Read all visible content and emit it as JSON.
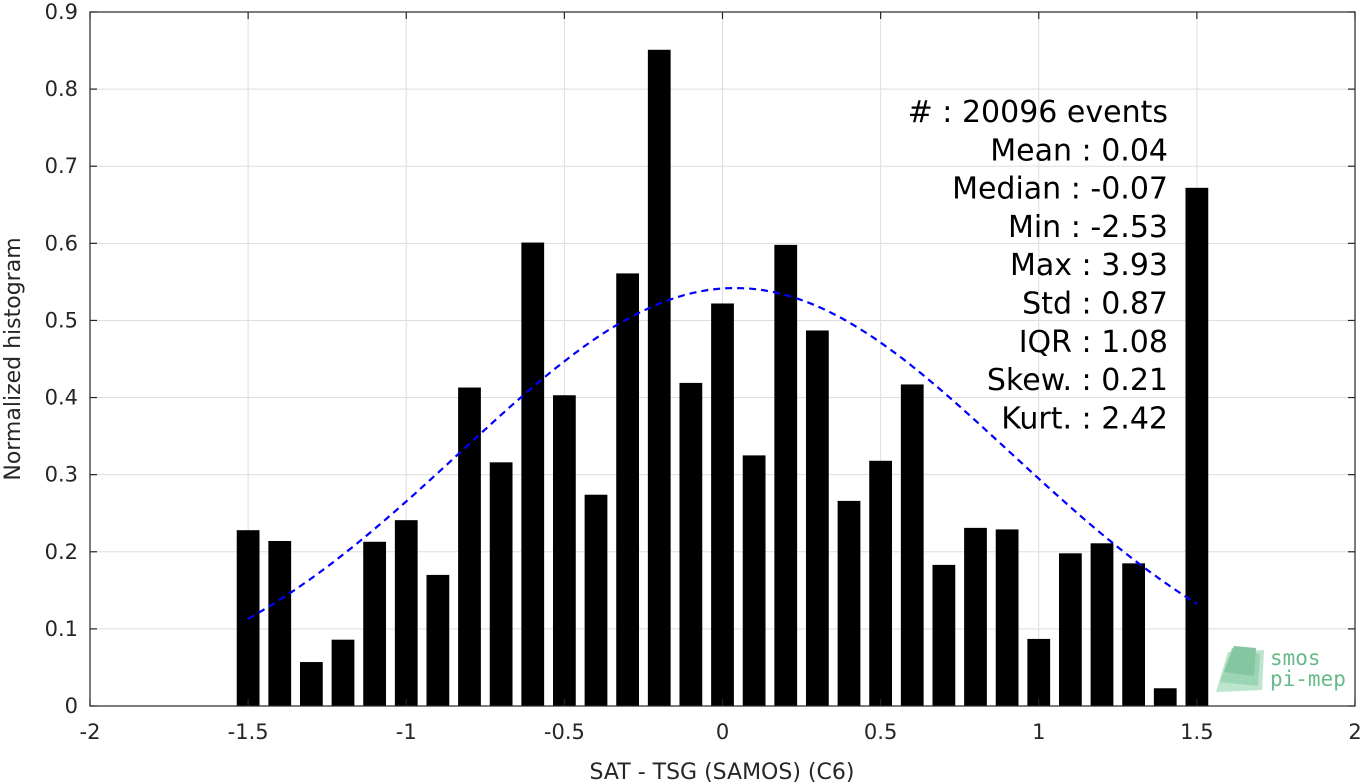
{
  "chart_data": {
    "type": "bar",
    "xlabel": "SAT - TSG (SAMOS) (C6)",
    "ylabel": "Normalized histogram",
    "xlim": [
      -2,
      2
    ],
    "ylim": [
      0,
      0.9
    ],
    "xticks": [
      -2,
      -1.5,
      -1,
      -0.5,
      0,
      0.5,
      1,
      1.5,
      2
    ],
    "xtick_labels": [
      "-2",
      "-1.5",
      "-1",
      "-0.5",
      "0",
      "0.5",
      "1",
      "1.5",
      "2"
    ],
    "yticks": [
      0,
      0.1,
      0.2,
      0.3,
      0.4,
      0.5,
      0.6,
      0.7,
      0.8,
      0.9
    ],
    "ytick_labels": [
      "0",
      "0.1",
      "0.2",
      "0.3",
      "0.4",
      "0.5",
      "0.6",
      "0.7",
      "0.8",
      "0.9"
    ],
    "grid": true,
    "bin_width": 0.1,
    "x": [
      -1.5,
      -1.4,
      -1.3,
      -1.2,
      -1.1,
      -1.0,
      -0.9,
      -0.8,
      -0.7,
      -0.6,
      -0.5,
      -0.4,
      -0.3,
      -0.2,
      -0.1,
      0.0,
      0.1,
      0.2,
      0.3,
      0.4,
      0.5,
      0.6,
      0.7,
      0.8,
      0.9,
      1.0,
      1.1,
      1.2,
      1.3,
      1.4,
      1.5
    ],
    "values": [
      0.228,
      0.214,
      0.057,
      0.086,
      0.213,
      0.241,
      0.17,
      0.413,
      0.316,
      0.601,
      0.403,
      0.274,
      0.561,
      0.851,
      0.419,
      0.522,
      0.325,
      0.598,
      0.487,
      0.266,
      0.318,
      0.417,
      0.183,
      0.231,
      0.229,
      0.087,
      0.198,
      0.211,
      0.185,
      0.023,
      0.672
    ],
    "bar_color": "#000000",
    "fit_curve": {
      "type": "normal",
      "mean": 0.04,
      "std": 0.87,
      "x_range": [
        -1.5,
        1.5
      ],
      "peak": 0.542,
      "color": "#0000ff",
      "style": "dashed"
    },
    "stats": [
      {
        "label": "#  : 20096 events"
      },
      {
        "label": "Mean : 0.04"
      },
      {
        "label": "Median : -0.07"
      },
      {
        "label": "Min : -2.53"
      },
      {
        "label": "Max : 3.93"
      },
      {
        "label": "Std : 0.87"
      },
      {
        "label": "IQR : 1.08"
      },
      {
        "label": "Skew. : 0.21"
      },
      {
        "label": "Kurt. : 2.42"
      }
    ]
  },
  "logo": {
    "line1": "smos",
    "line2": "pi-mep",
    "color": "#66bb88"
  }
}
